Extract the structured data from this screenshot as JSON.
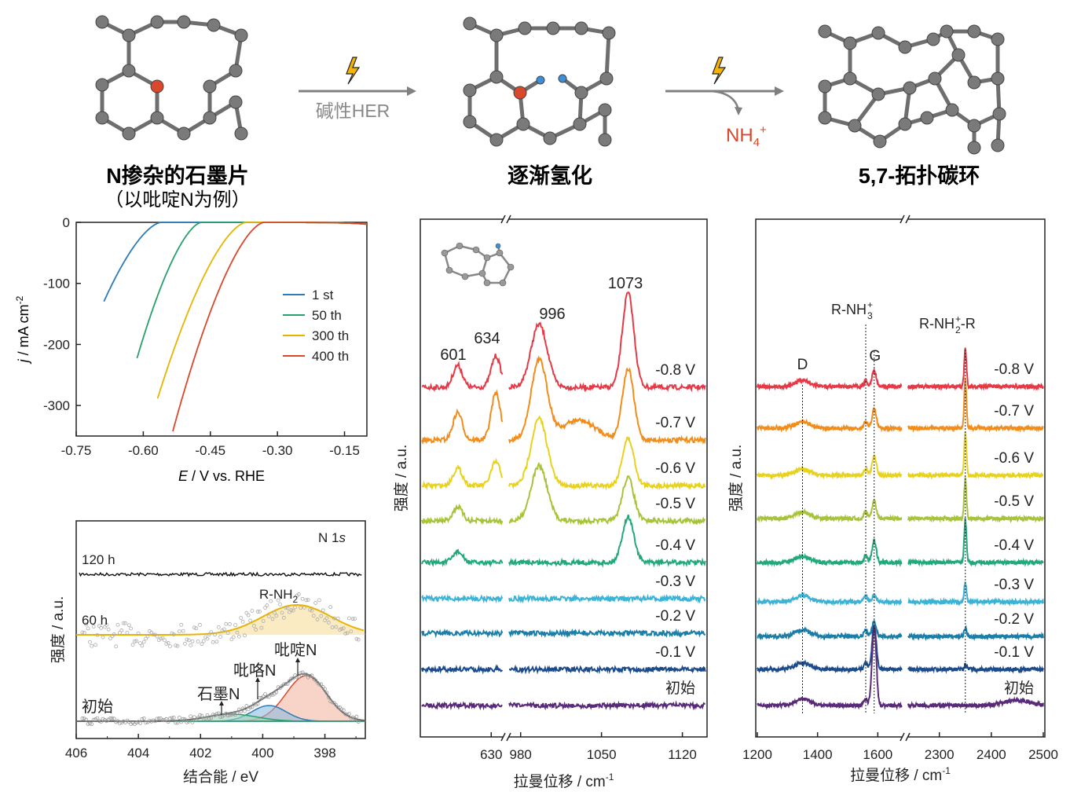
{
  "scheme": {
    "stage1_title": "N掺杂的石墨片",
    "stage1_subtitle": "（以吡啶N为例）",
    "arrow1_label": "碱性HER",
    "stage2_title": "逐渐氢化",
    "arrow2_product": "NH",
    "arrow2_product_sub": "4",
    "arrow2_product_sup": "+",
    "stage3_title": "5,7-拓扑碳环",
    "colors": {
      "carbon": "#7a7a7a",
      "nitrogen": "#d9482b",
      "hydrogen": "#3d8fd9",
      "lightning": "#f4b400",
      "arrow": "#808080"
    },
    "icons": [
      "lightning-icon",
      "reaction-arrow-icon"
    ]
  },
  "chart_data": [
    {
      "id": "lsv",
      "type": "line",
      "xlabel": "E / V vs. RHE",
      "ylabel": "j / mA cm-2",
      "xlim": [
        -0.75,
        -0.1
      ],
      "ylim": [
        -350,
        0
      ],
      "xticks": [
        -0.75,
        -0.6,
        -0.45,
        -0.3,
        -0.15
      ],
      "xtick_labels": [
        "-0.75",
        "-0.60",
        "-0.45",
        "-0.30",
        "-0.15"
      ],
      "yticks": [
        0,
        -100,
        -200,
        -300
      ],
      "legend_position": "center-right",
      "series": [
        {
          "name": "1 st",
          "color": "#2b7bb9",
          "onset": -0.56,
          "end": -0.69,
          "jmin": -133
        },
        {
          "name": "50 th",
          "color": "#27a06a",
          "onset": -0.47,
          "end": -0.615,
          "jmin": -225
        },
        {
          "name": "300 th",
          "color": "#e8b400",
          "onset": -0.37,
          "end": -0.57,
          "jmin": -293
        },
        {
          "name": "400 th",
          "color": "#d9482b",
          "onset": -0.33,
          "end": -0.535,
          "jmin": -345
        }
      ]
    },
    {
      "id": "xps",
      "type": "line",
      "title": "N 1s",
      "xlabel": "结合能 / eV",
      "ylabel": "强度 / a.u.",
      "xlim": [
        406,
        396.7
      ],
      "xticks": [
        406,
        404,
        402,
        400,
        398
      ],
      "traces": [
        {
          "label": "120 h",
          "color": "#111111"
        },
        {
          "label": "60 h",
          "color": "#e8b400",
          "components": [
            {
              "name": "R-NH2",
              "center": 398.9,
              "color": "#e8b400"
            }
          ]
        },
        {
          "label": "初始",
          "color": "#555555",
          "components": [
            {
              "name": "吡啶N",
              "center": 398.6,
              "color": "#d9482b"
            },
            {
              "name": "吡咯N",
              "center": 399.8,
              "color": "#2b7bb9"
            },
            {
              "name": "石墨N",
              "center": 401.0,
              "color": "#27a06a"
            }
          ]
        }
      ],
      "label_rnh2_main": "R-NH",
      "label_rnh2_sub": "2"
    },
    {
      "id": "raman-low",
      "type": "line",
      "xlabel": "拉曼位移 / cm-1",
      "ylabel": "强度 / a.u.",
      "xticks": [
        630,
        980,
        1050,
        1120
      ],
      "axis_break": "between 640 and 970",
      "peaks": [
        601,
        634,
        996,
        1073
      ],
      "potentials": [
        "-0.8 V",
        "-0.7 V",
        "-0.6 V",
        "-0.5 V",
        "-0.4 V",
        "-0.3 V",
        "-0.2 V",
        "-0.1 V",
        "初始"
      ],
      "colors": [
        "#e63946",
        "#f28c1a",
        "#e8d21d",
        "#a7c33a",
        "#22a97a",
        "#3bb3d6",
        "#1a7ea8",
        "#1c4b8c",
        "#5a2a7a"
      ]
    },
    {
      "id": "raman-high",
      "type": "line",
      "xlabel": "拉曼位移 / cm-1",
      "ylabel": "强度 / a.u.",
      "xticks": [
        1200,
        1400,
        1600,
        2300,
        2400,
        2500
      ],
      "axis_break": "between 1680 and 2240",
      "band_labels": {
        "D": "D",
        "G": "G",
        "rnh3_main": "R-NH",
        "rnh3_sub": "3",
        "rnh3_sup": "+",
        "rnh2r_main": "R-NH",
        "rnh2r_sub": "2",
        "rnh2r_sup": "+",
        "rnh2r_tail": "-R"
      },
      "potentials": [
        "-0.8 V",
        "-0.7 V",
        "-0.6 V",
        "-0.5 V",
        "-0.4 V",
        "-0.3 V",
        "-0.2 V",
        "-0.1 V",
        "初始"
      ],
      "colors": [
        "#e63946",
        "#f28c1a",
        "#e8d21d",
        "#a7c33a",
        "#22a97a",
        "#3bb3d6",
        "#1a7ea8",
        "#1c4b8c",
        "#5a2a7a"
      ]
    }
  ]
}
